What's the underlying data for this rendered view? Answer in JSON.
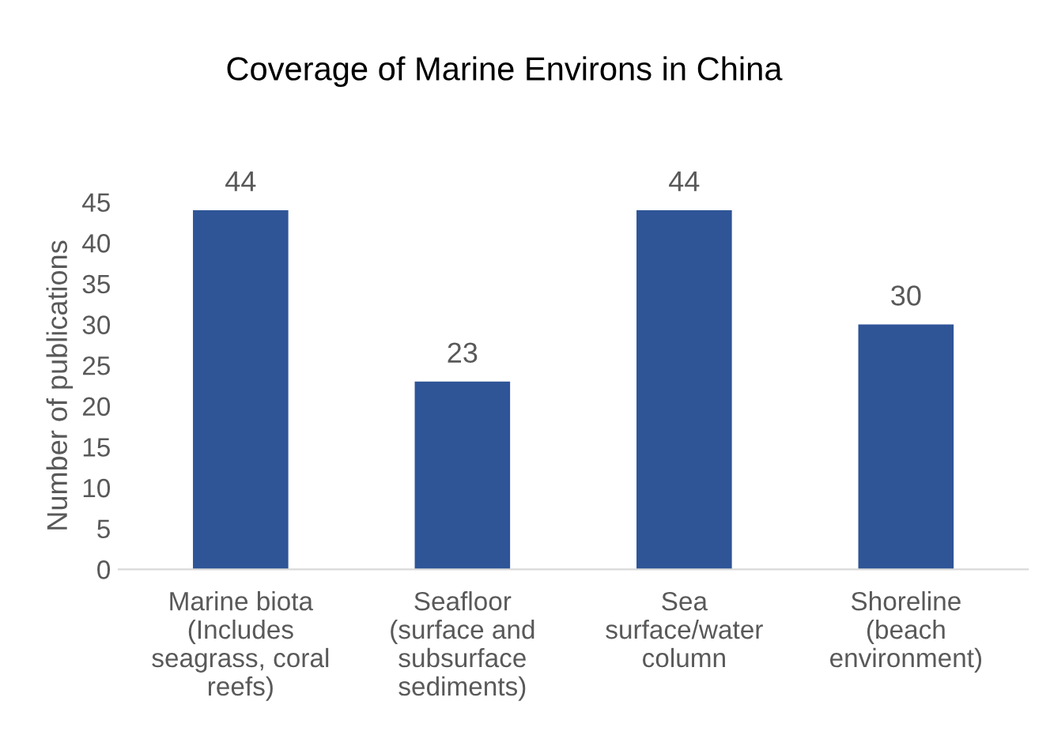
{
  "chart_data": {
    "type": "bar",
    "title": "Coverage of Marine Environs in China",
    "ylabel": "Number of publications",
    "categories": [
      "Marine biota\n(Includes\nseagrass, coral\nreefs)",
      "Seafloor\n(surface and\nsubsurface\nsediments)",
      "Sea\nsurface/water\ncolumn",
      "Shoreline\n(beach\nenvironment)"
    ],
    "values": [
      44,
      23,
      44,
      30
    ],
    "color": "#2f5597",
    "ylim": [
      0,
      45
    ],
    "yticks": [
      0,
      5,
      10,
      15,
      20,
      25,
      30,
      35,
      40,
      45
    ],
    "grid": false,
    "data_labels": true
  }
}
